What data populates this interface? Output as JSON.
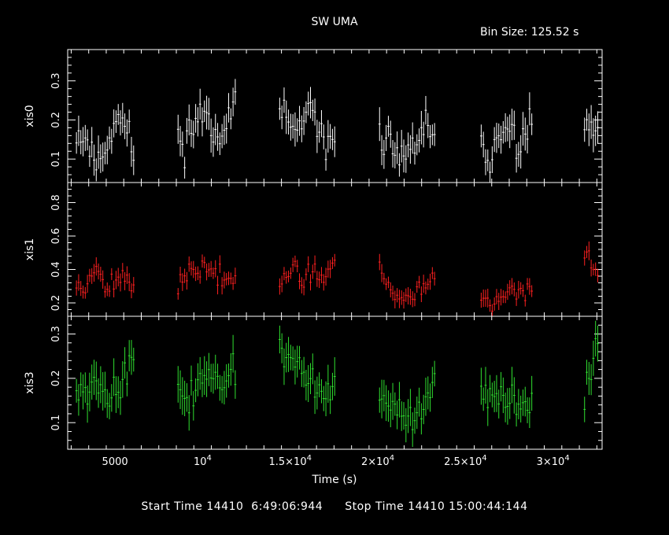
{
  "chart_data": {
    "type": "scatter",
    "title": "SW UMA",
    "bin_label": "Bin Size: 125.52 s",
    "xlabel": "Time (s)",
    "xlim": [
      2300,
      32800
    ],
    "x_ticks": [
      {
        "value": 5000,
        "base": "5000",
        "exp": ""
      },
      {
        "value": 10000,
        "base": "10",
        "exp": "4"
      },
      {
        "value": 15000,
        "base": "1.5×10",
        "exp": "4"
      },
      {
        "value": 20000,
        "base": "2×10",
        "exp": "4"
      },
      {
        "value": 25000,
        "base": "2.5×10",
        "exp": "4"
      },
      {
        "value": 30000,
        "base": "3×10",
        "exp": "4"
      }
    ],
    "segments": [
      [
        2800,
        6100
      ],
      [
        8600,
        11900
      ],
      [
        14400,
        17600
      ],
      [
        20100,
        23300
      ],
      [
        25900,
        28900
      ],
      [
        31800,
        32600
      ]
    ],
    "bin_size": 125.52,
    "panels": [
      {
        "name": "xis0",
        "color": "#ffffff",
        "ylim": [
          0.04,
          0.38
        ],
        "ticks": [
          0.1,
          0.2,
          0.3
        ],
        "tick_labels": [
          "0.1",
          "0.2",
          "0.3"
        ],
        "profile": [
          0.17,
          0.15,
          0.09,
          0.13,
          0.21,
          0.18,
          0.1,
          0.16,
          0.2,
          0.2,
          0.16,
          0.14,
          0.2,
          0.22,
          0.17,
          0.19,
          0.24,
          0.2,
          0.18,
          0.24,
          0.18,
          0.21,
          0.17,
          0.19,
          0.21,
          0.12,
          0.16,
          0.21,
          0.19,
          0.17,
          0.15,
          0.16,
          0.14,
          0.09,
          0.12,
          0.15,
          0.19,
          0.12,
          0.14,
          0.17,
          0.18,
          0.15,
          0.1,
          0.14,
          0.18,
          0.13,
          0.2,
          0.17,
          0.18,
          0.16,
          0.14,
          0.18,
          0.17,
          0.18
        ],
        "noise": 0.035,
        "err": 0.035,
        "seed": 11
      },
      {
        "name": "xis1",
        "color": "#ff2020",
        "ylim": [
          0.12,
          0.92
        ],
        "ticks": [
          0.2,
          0.4,
          0.6,
          0.8
        ],
        "tick_labels": [
          "0.2",
          "0.4",
          "0.6",
          "0.8"
        ],
        "profile": [
          0.31,
          0.28,
          0.45,
          0.3,
          0.33,
          0.38,
          0.27,
          0.3,
          0.33,
          0.3,
          0.28,
          0.35,
          0.38,
          0.42,
          0.38,
          0.33,
          0.4,
          0.35,
          0.31,
          0.36,
          0.34,
          0.36,
          0.38,
          0.33,
          0.41,
          0.35,
          0.42,
          0.5,
          0.44,
          0.33,
          0.36,
          0.42,
          0.26,
          0.22,
          0.24,
          0.3,
          0.34,
          0.38,
          0.4,
          0.33,
          0.28,
          0.24,
          0.22,
          0.21,
          0.24,
          0.27,
          0.3,
          0.38,
          0.33,
          0.31,
          0.28,
          0.33,
          0.52,
          0.28
        ],
        "noise": 0.05,
        "err": 0.045,
        "seed": 23
      },
      {
        "name": "xis3",
        "color": "#30e030",
        "ylim": [
          0.04,
          0.34
        ],
        "ticks": [
          0.1,
          0.2,
          0.3
        ],
        "tick_labels": [
          "0.1",
          "0.2",
          "0.3"
        ],
        "profile": [
          0.19,
          0.17,
          0.21,
          0.17,
          0.16,
          0.23,
          0.22,
          0.2,
          0.16,
          0.19,
          0.18,
          0.16,
          0.17,
          0.22,
          0.2,
          0.18,
          0.22,
          0.21,
          0.2,
          0.24,
          0.22,
          0.26,
          0.24,
          0.22,
          0.18,
          0.15,
          0.18,
          0.21,
          0.2,
          0.16,
          0.15,
          0.17,
          0.14,
          0.11,
          0.09,
          0.13,
          0.17,
          0.2,
          0.17,
          0.15,
          0.18,
          0.16,
          0.15,
          0.18,
          0.16,
          0.13,
          0.16,
          0.15,
          0.17,
          0.16,
          0.18,
          0.12,
          0.22,
          0.28
        ],
        "noise": 0.03,
        "err": 0.035,
        "seed": 37
      }
    ]
  },
  "footer": {
    "start": "Start Time 14410  6:49:06:944",
    "stop": "Stop Time 14410 15:00:44:144"
  }
}
